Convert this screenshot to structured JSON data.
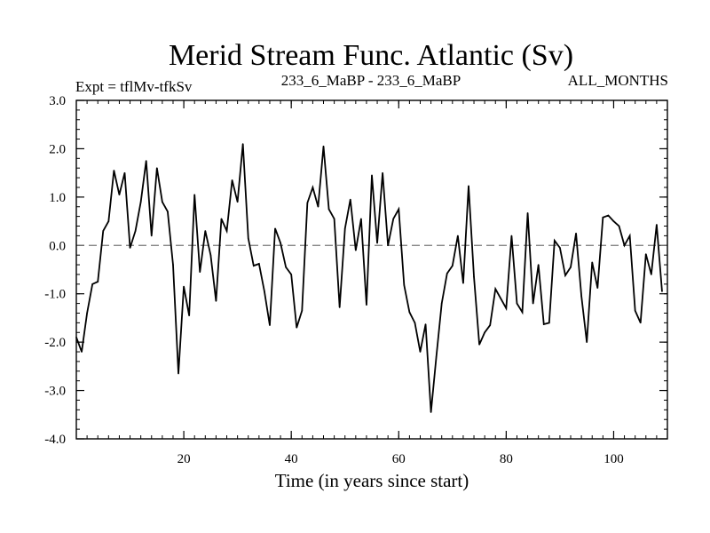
{
  "chart_data": {
    "type": "line",
    "title": "Merid Stream Func. Atlantic (Sv)",
    "subtitle_left": "Expt = tflMv-tfkSv",
    "subtitle_center": "233_6_MaBP - 233_6_MaBP",
    "subtitle_right": "ALL_MONTHS",
    "xlabel": "Time (in years since start)",
    "ylabel": "",
    "xlim": [
      0,
      110
    ],
    "ylim": [
      -4.0,
      3.0
    ],
    "x_ticks": [
      20,
      40,
      60,
      80,
      100
    ],
    "x_minor_step": 2,
    "y_ticks": [
      -4.0,
      -3.0,
      -2.0,
      -1.0,
      0.0,
      1.0,
      2.0,
      3.0
    ],
    "y_tick_labels": [
      "-4.0",
      "-3.0",
      "-2.0",
      "-1.0",
      "0.0",
      "1.0",
      "2.0",
      "3.0"
    ],
    "y_minor_step": 0.2,
    "reference_line": {
      "y": 0.0,
      "style": "dashed"
    },
    "series": [
      {
        "name": "Merid Stream Func.",
        "x_start": 0,
        "x_step": 1,
        "values": [
          -1.9,
          -2.2,
          -1.4,
          -0.8,
          -0.75,
          0.3,
          0.5,
          1.55,
          1.05,
          1.5,
          -0.05,
          0.3,
          0.9,
          1.75,
          0.2,
          1.6,
          0.9,
          0.7,
          -0.4,
          -2.65,
          -0.85,
          -1.45,
          1.05,
          -0.55,
          0.3,
          -0.2,
          -1.15,
          0.55,
          0.3,
          1.35,
          0.9,
          2.1,
          0.15,
          -0.42,
          -0.38,
          -0.95,
          -1.65,
          0.35,
          0.05,
          -0.45,
          -0.6,
          -1.7,
          -1.35,
          0.88,
          1.2,
          0.8,
          2.05,
          0.75,
          0.55,
          -1.28,
          0.35,
          0.95,
          -0.1,
          0.55,
          -1.23,
          1.45,
          0.05,
          1.5,
          0.0,
          0.55,
          0.75,
          -0.82,
          -1.38,
          -1.6,
          -2.2,
          -1.63,
          -3.45,
          -2.3,
          -1.2,
          -0.58,
          -0.42,
          0.2,
          -0.78,
          1.23,
          -0.65,
          -2.05,
          -1.8,
          -1.65,
          -0.9,
          -1.1,
          -1.3,
          0.2,
          -1.2,
          -1.38,
          0.67,
          -1.2,
          -0.4,
          -1.63,
          -1.6,
          0.1,
          -0.05,
          -0.62,
          -0.45,
          0.25,
          -1.05,
          -2.0,
          -0.35,
          -0.88,
          0.58,
          0.62,
          0.5,
          0.4,
          0.0,
          0.2,
          -1.35,
          -1.6,
          -0.18,
          -0.6,
          0.43,
          -0.95
        ]
      }
    ]
  }
}
